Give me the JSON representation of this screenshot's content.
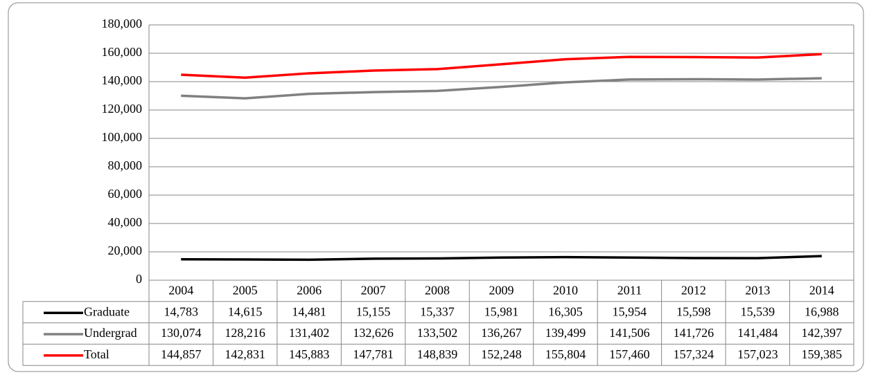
{
  "chart_data": {
    "type": "line",
    "categories": [
      "2004",
      "2005",
      "2006",
      "2007",
      "2008",
      "2009",
      "2010",
      "2011",
      "2012",
      "2013",
      "2014"
    ],
    "series": [
      {
        "name": "Graduate",
        "color": "#000000",
        "values": [
          14783,
          14615,
          14481,
          15155,
          15337,
          15981,
          16305,
          15954,
          15598,
          15539,
          16988
        ],
        "value_labels": [
          "14,783",
          "14,615",
          "14,481",
          "15,155",
          "15,337",
          "15,981",
          "16,305",
          "15,954",
          "15,598",
          "15,539",
          "16,988"
        ]
      },
      {
        "name": "Undergrad",
        "color": "#808080",
        "values": [
          130074,
          128216,
          131402,
          132626,
          133502,
          136267,
          139499,
          141506,
          141726,
          141484,
          142397
        ],
        "value_labels": [
          "130,074",
          "128,216",
          "131,402",
          "132,626",
          "133,502",
          "136,267",
          "139,499",
          "141,506",
          "141,726",
          "141,484",
          "142,397"
        ]
      },
      {
        "name": "Total",
        "color": "#ff0000",
        "values": [
          144857,
          142831,
          145883,
          147781,
          148839,
          152248,
          155804,
          157460,
          157324,
          157023,
          159385
        ],
        "value_labels": [
          "144,857",
          "142,831",
          "145,883",
          "147,781",
          "148,839",
          "152,248",
          "155,804",
          "157,460",
          "157,324",
          "157,023",
          "159,385"
        ]
      }
    ],
    "ylim": [
      0,
      180000
    ],
    "yticks": [
      0,
      {
        "value": 20000,
        "label": "20,000"
      },
      {
        "value": 40000,
        "label": "40,000"
      },
      {
        "value": 60000,
        "label": "60,000"
      },
      {
        "value": 80000,
        "label": "80,000"
      },
      {
        "value": 100000,
        "label": "100,000"
      },
      {
        "value": 120000,
        "label": "120,000"
      },
      {
        "value": 140000,
        "label": "140,000"
      },
      {
        "value": 160000,
        "label": "160,000"
      },
      {
        "value": 180000,
        "label": "180,000"
      }
    ],
    "grid": true
  }
}
